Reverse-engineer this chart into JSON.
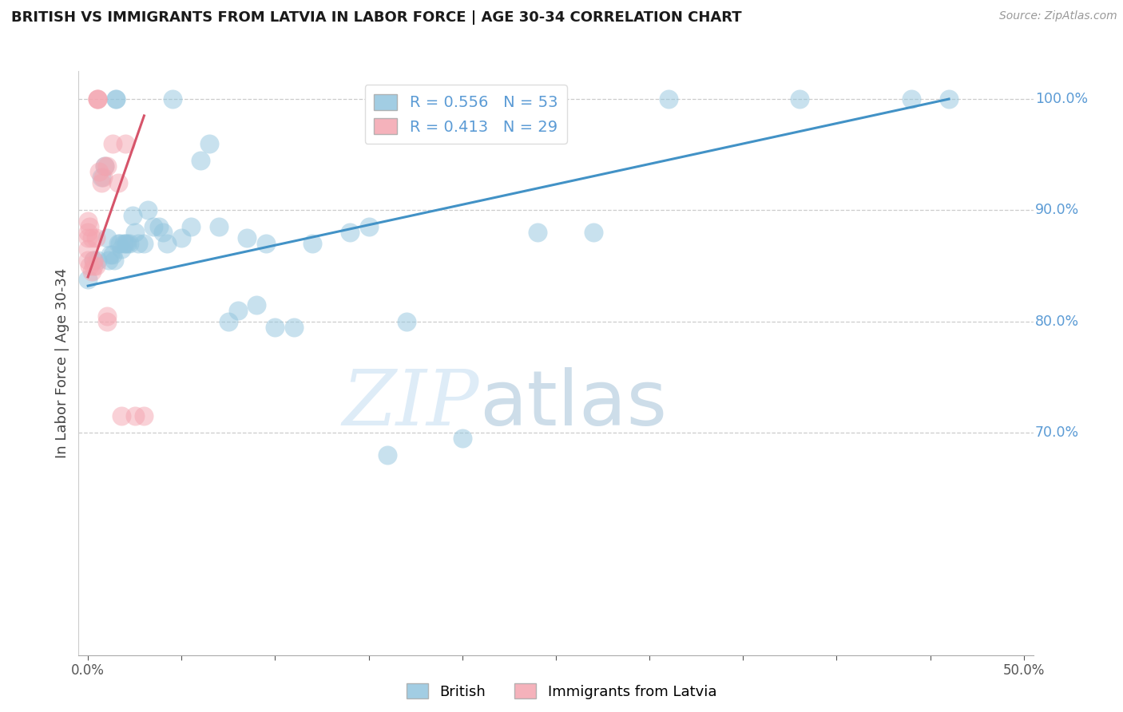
{
  "title": "BRITISH VS IMMIGRANTS FROM LATVIA IN LABOR FORCE | AGE 30-34 CORRELATION CHART",
  "source": "Source: ZipAtlas.com",
  "ylabel": "In Labor Force | Age 30-34",
  "xlim": [
    -0.005,
    0.505
  ],
  "ylim": [
    0.5,
    1.025
  ],
  "xtick_positions": [
    0.0,
    0.05,
    0.1,
    0.15,
    0.2,
    0.25,
    0.3,
    0.35,
    0.4,
    0.45,
    0.5
  ],
  "xticklabels": [
    "0.0%",
    "",
    "",
    "",
    "",
    "",
    "",
    "",
    "",
    "",
    "50.0%"
  ],
  "grid_yticks": [
    0.7,
    0.8,
    0.9,
    1.0
  ],
  "right_ytick_labels": [
    "70.0%",
    "80.0%",
    "90.0%",
    "100.0%"
  ],
  "british_R": 0.556,
  "british_N": 53,
  "latvia_R": 0.413,
  "latvia_N": 29,
  "british_color": "#92c5de",
  "latvia_color": "#f4a5b0",
  "british_line_color": "#4292c6",
  "latvia_line_color": "#d6546a",
  "watermark_zip": "ZIP",
  "watermark_atlas": "atlas",
  "british_x": [
    0.0,
    0.003,
    0.005,
    0.007,
    0.009,
    0.01,
    0.011,
    0.012,
    0.013,
    0.014,
    0.015,
    0.015,
    0.016,
    0.017,
    0.018,
    0.019,
    0.02,
    0.021,
    0.022,
    0.024,
    0.025,
    0.027,
    0.03,
    0.032,
    0.035,
    0.038,
    0.04,
    0.042,
    0.045,
    0.05,
    0.055,
    0.06,
    0.065,
    0.07,
    0.075,
    0.08,
    0.085,
    0.09,
    0.095,
    0.1,
    0.11,
    0.12,
    0.14,
    0.15,
    0.16,
    0.17,
    0.2,
    0.24,
    0.27,
    0.31,
    0.38,
    0.44,
    0.46
  ],
  "british_y": [
    0.838,
    0.855,
    0.855,
    0.93,
    0.94,
    0.875,
    0.855,
    0.86,
    0.86,
    0.855,
    1.0,
    1.0,
    0.87,
    0.87,
    0.865,
    0.87,
    0.87,
    0.87,
    0.87,
    0.895,
    0.88,
    0.87,
    0.87,
    0.9,
    0.885,
    0.885,
    0.88,
    0.87,
    1.0,
    0.875,
    0.885,
    0.945,
    0.96,
    0.885,
    0.8,
    0.81,
    0.875,
    0.815,
    0.87,
    0.795,
    0.795,
    0.87,
    0.88,
    0.885,
    0.68,
    0.8,
    0.695,
    0.88,
    0.88,
    1.0,
    1.0,
    1.0,
    1.0
  ],
  "latvia_x": [
    0.0,
    0.0,
    0.0,
    0.0,
    0.0,
    0.001,
    0.001,
    0.002,
    0.002,
    0.003,
    0.003,
    0.004,
    0.004,
    0.005,
    0.005,
    0.005,
    0.006,
    0.007,
    0.008,
    0.009,
    0.01,
    0.01,
    0.01,
    0.013,
    0.016,
    0.018,
    0.02,
    0.025,
    0.03
  ],
  "latvia_y": [
    0.855,
    0.865,
    0.875,
    0.88,
    0.89,
    0.85,
    0.885,
    0.845,
    0.875,
    0.85,
    0.855,
    0.85,
    0.875,
    1.0,
    1.0,
    1.0,
    0.935,
    0.925,
    0.93,
    0.94,
    0.94,
    0.8,
    0.805,
    0.96,
    0.925,
    0.715,
    0.96,
    0.715,
    0.715
  ],
  "british_line_x": [
    0.0,
    0.46
  ],
  "british_line_y": [
    0.832,
    1.0
  ],
  "latvia_line_x": [
    0.0,
    0.03
  ],
  "latvia_line_y": [
    0.84,
    0.985
  ]
}
